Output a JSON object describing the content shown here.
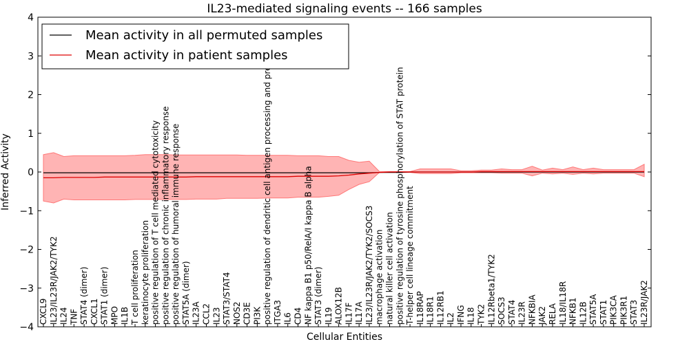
{
  "chart_data": {
    "type": "line",
    "title": "IL23-mediated signaling events -- 166 samples",
    "xlabel": "Cellular Entities",
    "ylabel": "Inferred Activity",
    "ylim": [
      -4,
      4
    ],
    "yticks": [
      -4,
      -3,
      -2,
      -1,
      0,
      1,
      2,
      3,
      4
    ],
    "ytick_labels": [
      "−4",
      "−3",
      "−2",
      "−1",
      "0",
      "1",
      "2",
      "3",
      "4"
    ],
    "legend_position": "top-left",
    "categories": [
      "CXCL9",
      "IL23/IL23R/JAK2/TYK2",
      "IL24",
      "TNF",
      "STAT4 (dimer)",
      "CXCL1",
      "STAT1 (dimer)",
      "MPO",
      "IL1B",
      "T cell proliferation",
      "keratinocyte proliferation",
      "positive regulation of T cell mediated cytotoxicity",
      "positive regulation of chronic inflammatory response",
      "positive regulation of humoral immune response",
      "STAT5A (dimer)",
      "IL23A",
      "CCL2",
      "IL23",
      "STAT3/STAT4",
      "NOS2",
      "CD3E",
      "PI3K",
      "positive regulation of dendritic cell antigen processing and presentation",
      "ITGA3",
      "IL6",
      "CD4",
      "NF kappa B1 p50/RelA/I kappa B alpha",
      "STAT3 (dimer)",
      "IL19",
      "ALOX12B",
      "IL17F",
      "IL17A",
      "IL23/IL23R/JAK2/TYK2/SOCS3",
      "macrophage activation",
      "natural killer cell activation",
      "positive regulation of tyrosine phosphorylation of STAT protein",
      "T-helper cell lineage commitment",
      "IL18RAP",
      "IL18R1",
      "IL12RB1",
      "IL2",
      "IFNG",
      "IL18",
      "TYK2",
      "IL12Rbeta1/TYK2",
      "SOCS3",
      "STAT4",
      "IL23R",
      "NFKBIA",
      "JAK2",
      "RELA",
      "IL18/IL18R",
      "NFKB1",
      "IL12B",
      "STAT5A",
      "STAT1",
      "PIK3CA",
      "PIK3R1",
      "STAT3",
      "IL23R/JAK2"
    ],
    "series": [
      {
        "name": "Mean activity in all permuted samples",
        "color": "#000000",
        "values": [
          -0.02,
          -0.02,
          -0.02,
          -0.02,
          -0.02,
          -0.02,
          -0.02,
          -0.02,
          -0.02,
          -0.02,
          -0.02,
          -0.02,
          -0.02,
          -0.02,
          -0.02,
          -0.02,
          -0.02,
          -0.02,
          -0.02,
          -0.02,
          -0.02,
          -0.02,
          -0.02,
          -0.02,
          -0.02,
          -0.02,
          -0.02,
          -0.02,
          -0.02,
          -0.02,
          -0.02,
          -0.02,
          -0.02,
          -0.01,
          -0.01,
          -0.01,
          0.0,
          0.0,
          0.0,
          0.0,
          0.0,
          0.0,
          0.0,
          0.0,
          0.0,
          0.0,
          0.0,
          0.0,
          0.0,
          0.0,
          0.0,
          0.0,
          0.0,
          0.0,
          0.0,
          0.0,
          0.0,
          0.0,
          0.0,
          0.0
        ]
      },
      {
        "name": "Mean activity in patient samples",
        "color": "#dd0000",
        "fill_color": "#ff7777",
        "values": [
          -0.15,
          -0.15,
          -0.14,
          -0.14,
          -0.14,
          -0.14,
          -0.13,
          -0.13,
          -0.13,
          -0.13,
          -0.13,
          -0.13,
          -0.13,
          -0.13,
          -0.13,
          -0.12,
          -0.12,
          -0.12,
          -0.12,
          -0.12,
          -0.12,
          -0.12,
          -0.12,
          -0.12,
          -0.12,
          -0.11,
          -0.11,
          -0.11,
          -0.11,
          -0.1,
          -0.08,
          -0.05,
          -0.03,
          -0.01,
          0.0,
          0.0,
          0.0,
          0.0,
          0.0,
          0.0,
          0.0,
          0.0,
          0.0,
          0.01,
          0.01,
          0.01,
          0.01,
          0.01,
          0.01,
          0.01,
          0.01,
          0.01,
          0.01,
          0.01,
          0.01,
          0.01,
          0.01,
          0.01,
          0.01,
          0.01
        ],
        "upper": [
          0.45,
          0.5,
          0.4,
          0.42,
          0.42,
          0.42,
          0.42,
          0.42,
          0.42,
          0.43,
          0.45,
          0.45,
          0.45,
          0.44,
          0.44,
          0.44,
          0.44,
          0.44,
          0.44,
          0.44,
          0.43,
          0.43,
          0.43,
          0.43,
          0.43,
          0.42,
          0.42,
          0.42,
          0.4,
          0.4,
          0.3,
          0.25,
          0.28,
          0.01,
          0.01,
          0.01,
          0.01,
          0.08,
          0.08,
          0.08,
          0.08,
          0.03,
          0.03,
          0.05,
          0.05,
          0.08,
          0.06,
          0.06,
          0.15,
          0.05,
          0.1,
          0.06,
          0.13,
          0.06,
          0.1,
          0.06,
          0.06,
          0.06,
          0.06,
          0.2
        ],
        "lower": [
          -0.75,
          -0.8,
          -0.7,
          -0.72,
          -0.72,
          -0.72,
          -0.72,
          -0.72,
          -0.72,
          -0.71,
          -0.71,
          -0.71,
          -0.71,
          -0.71,
          -0.71,
          -0.7,
          -0.7,
          -0.7,
          -0.68,
          -0.68,
          -0.68,
          -0.68,
          -0.67,
          -0.67,
          -0.67,
          -0.65,
          -0.65,
          -0.65,
          -0.63,
          -0.6,
          -0.45,
          -0.32,
          -0.25,
          -0.01,
          -0.01,
          -0.01,
          -0.01,
          -0.04,
          -0.04,
          -0.04,
          -0.04,
          -0.02,
          -0.02,
          -0.02,
          -0.02,
          -0.03,
          -0.03,
          -0.03,
          -0.1,
          -0.03,
          -0.05,
          -0.03,
          -0.06,
          -0.03,
          -0.05,
          -0.03,
          -0.03,
          -0.03,
          -0.03,
          -0.12
        ]
      }
    ]
  }
}
